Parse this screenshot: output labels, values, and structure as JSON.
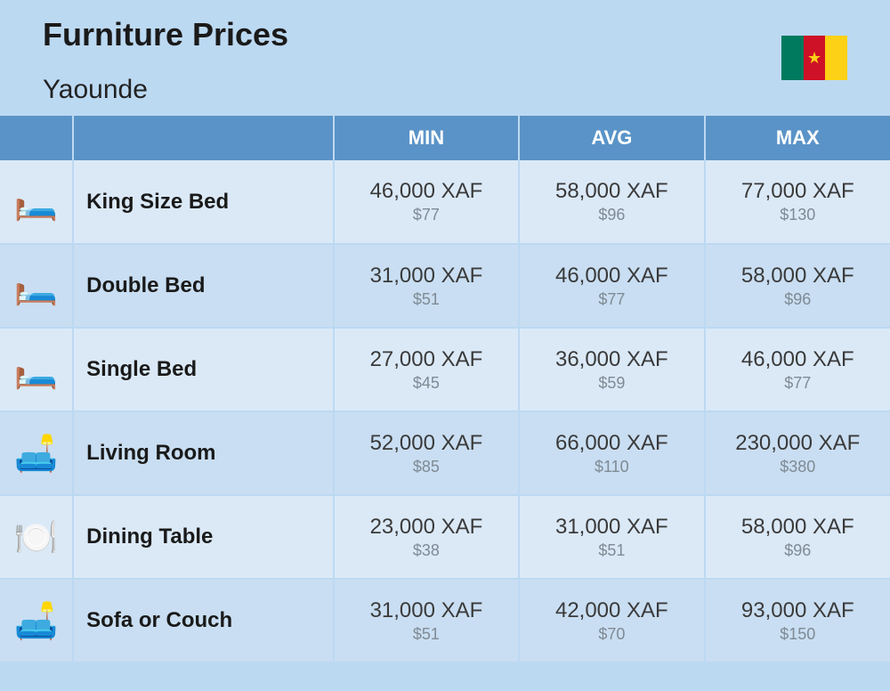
{
  "header": {
    "title": "Furniture Prices",
    "subtitle": "Yaounde"
  },
  "flag": {
    "colors": [
      "#007a5e",
      "#ce1126",
      "#fcd116"
    ],
    "star_color": "#fcd116"
  },
  "table": {
    "columns": [
      "MIN",
      "AVG",
      "MAX"
    ],
    "currency_main": "XAF",
    "currency_sub_prefix": "$",
    "header_bg": "#5a93c7",
    "header_text_color": "#ffffff",
    "row_odd_bg": "#dbe9f7",
    "row_even_bg": "#c9def2",
    "border_color": "#bcd9f2",
    "price_main_color": "#3a3a3a",
    "price_sub_color": "#7f8a94",
    "rows": [
      {
        "icon": "🛏️",
        "name": "King Size Bed",
        "min_xaf": "46,000 XAF",
        "min_usd": "$77",
        "avg_xaf": "58,000 XAF",
        "avg_usd": "$96",
        "max_xaf": "77,000 XAF",
        "max_usd": "$130"
      },
      {
        "icon": "🛏️",
        "name": "Double Bed",
        "min_xaf": "31,000 XAF",
        "min_usd": "$51",
        "avg_xaf": "46,000 XAF",
        "avg_usd": "$77",
        "max_xaf": "58,000 XAF",
        "max_usd": "$96"
      },
      {
        "icon": "🛏️",
        "name": "Single Bed",
        "min_xaf": "27,000 XAF",
        "min_usd": "$45",
        "avg_xaf": "36,000 XAF",
        "avg_usd": "$59",
        "max_xaf": "46,000 XAF",
        "max_usd": "$77"
      },
      {
        "icon": "🛋️",
        "name": "Living Room",
        "min_xaf": "52,000 XAF",
        "min_usd": "$85",
        "avg_xaf": "66,000 XAF",
        "avg_usd": "$110",
        "max_xaf": "230,000 XAF",
        "max_usd": "$380"
      },
      {
        "icon": "🍽️",
        "name": "Dining Table",
        "min_xaf": "23,000 XAF",
        "min_usd": "$38",
        "avg_xaf": "31,000 XAF",
        "avg_usd": "$51",
        "max_xaf": "58,000 XAF",
        "max_usd": "$96"
      },
      {
        "icon": "🛋️",
        "name": "Sofa or Couch",
        "min_xaf": "31,000 XAF",
        "min_usd": "$51",
        "avg_xaf": "42,000 XAF",
        "avg_usd": "$70",
        "max_xaf": "93,000 XAF",
        "max_usd": "$150"
      }
    ]
  }
}
